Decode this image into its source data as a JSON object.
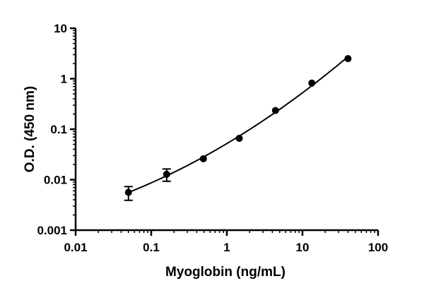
{
  "chart_data": {
    "type": "scatter",
    "title": "",
    "xlabel": "Myoglobin (ng/mL)",
    "ylabel": "O.D. (450 nm)",
    "xscale": "log",
    "yscale": "log",
    "xlim": [
      0.01,
      100
    ],
    "ylim": [
      0.001,
      10
    ],
    "x_ticks": [
      0.01,
      0.1,
      1,
      10,
      100
    ],
    "x_tick_labels": [
      "0.01",
      "0.1",
      "1",
      "10",
      "100"
    ],
    "y_ticks": [
      0.001,
      0.01,
      0.1,
      1,
      10
    ],
    "y_tick_labels": [
      "0.001",
      "0.01",
      "0.1",
      "1",
      "10"
    ],
    "grid": false,
    "series": [
      {
        "x": [
          0.05,
          0.16,
          0.49,
          1.46,
          4.4,
          13.3,
          40
        ],
        "y": [
          0.0056,
          0.0128,
          0.026,
          0.066,
          0.235,
          0.82,
          2.5
        ],
        "y_err": [
          0.0017,
          0.0035,
          0.002,
          0.004,
          0.01,
          0.03,
          0.06
        ],
        "marker": "circle",
        "color": "#000000",
        "fit_curve": true
      }
    ]
  }
}
